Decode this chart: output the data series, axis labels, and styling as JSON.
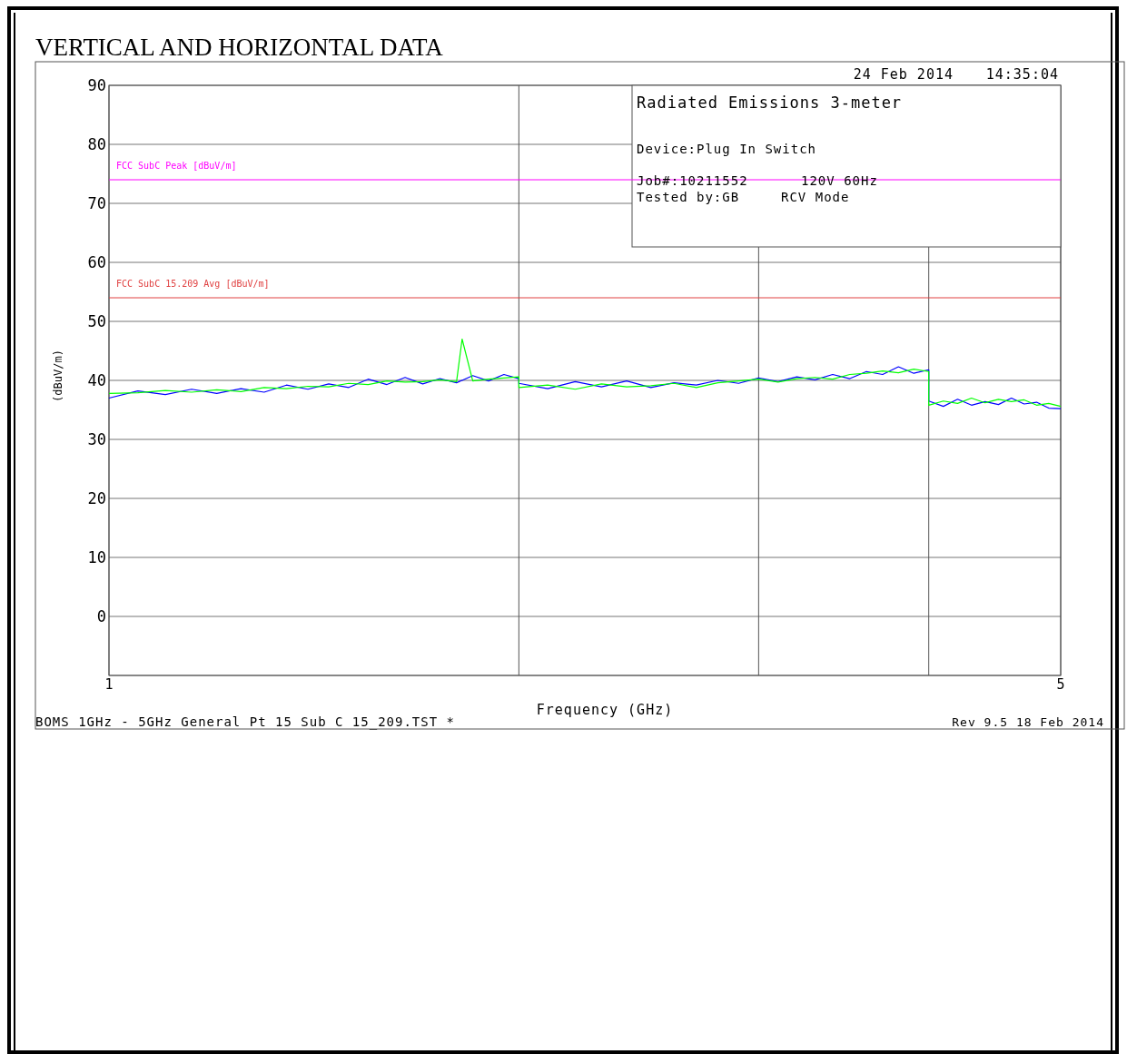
{
  "chart_data": {
    "type": "line",
    "title": "VERTICAL AND HORIZONTAL DATA",
    "xlabel": "Frequency (GHz)",
    "ylabel": "(dBuV/m)",
    "log": "x",
    "grid": true,
    "marker": "none",
    "line_style": "solid",
    "xlim": [
      1,
      5
    ],
    "xticks": [
      1,
      {
        "value": 2,
        "label": null
      },
      {
        "value": 3,
        "label": null
      },
      {
        "value": 4,
        "label": null
      },
      5
    ],
    "ylim": [
      -10,
      90
    ],
    "yticks": [
      {
        "value": -10,
        "label": null
      },
      0,
      10,
      20,
      30,
      40,
      50,
      60,
      70,
      80,
      90
    ],
    "ref_lines": [
      {
        "axis": "y",
        "value": 74,
        "label": "FCC SubC Peak [dBuV/m]",
        "color": "#ff00ff"
      },
      {
        "axis": "y",
        "value": 54,
        "label": "FCC SubC 15.209 Avg [dBuV/m]",
        "color": "#e04040"
      }
    ],
    "annotations": [
      "24 Feb 2014",
      "14:35:04",
      "Radiated Emissions 3-meter",
      "Device:Plug In Switch",
      "Job#:10211552",
      "120V 60Hz",
      "Tested by:GB",
      "RCV Mode",
      "BOMS 1GHz - 5GHz General Pt 15 Sub C 15_209.TST *",
      "Rev 9.5 18 Feb 2014"
    ],
    "series": [
      {
        "color": "#0000ff",
        "x": [
          1,
          1.05,
          1.1,
          1.15,
          1.2,
          1.25,
          1.3,
          1.35,
          1.4,
          1.45,
          1.5,
          1.55,
          1.6,
          1.65,
          1.7,
          1.75,
          1.8,
          1.85,
          1.9,
          1.95,
          2,
          2,
          2.1,
          2.2,
          2.3,
          2.4,
          2.5,
          2.6,
          2.7,
          2.8,
          2.9,
          3,
          3.1,
          3.2,
          3.3,
          3.4,
          3.5,
          3.6,
          3.7,
          3.8,
          3.9,
          4,
          4,
          4.1,
          4.2,
          4.3,
          4.4,
          4.5,
          4.6,
          4.7,
          4.8,
          4.9,
          5
        ],
        "values": [
          37,
          38.2,
          37.6,
          38.5,
          37.8,
          38.6,
          38,
          39.2,
          38.5,
          39.4,
          38.8,
          40.2,
          39.3,
          40.5,
          39.4,
          40.3,
          39.6,
          40.8,
          39.9,
          41,
          40.3,
          39.5,
          38.6,
          39.8,
          38.9,
          39.9,
          38.8,
          39.6,
          39.2,
          40,
          39.5,
          40.4,
          39.8,
          40.6,
          40.1,
          41,
          40.3,
          41.5,
          41,
          42.3,
          41.2,
          41.8,
          36.5,
          35.6,
          36.8,
          35.8,
          36.4,
          35.9,
          37,
          36,
          36.3,
          35.3,
          35.2
        ]
      },
      {
        "color": "#00ff00",
        "x": [
          1,
          1.05,
          1.1,
          1.15,
          1.2,
          1.25,
          1.3,
          1.35,
          1.4,
          1.45,
          1.5,
          1.55,
          1.6,
          1.65,
          1.7,
          1.75,
          1.8,
          1.817,
          1.85,
          1.9,
          1.95,
          2,
          2,
          2.1,
          2.2,
          2.3,
          2.4,
          2.5,
          2.6,
          2.7,
          2.8,
          2.9,
          3,
          3.1,
          3.2,
          3.3,
          3.4,
          3.5,
          3.6,
          3.7,
          3.8,
          3.9,
          4,
          4,
          4.1,
          4.2,
          4.3,
          4.4,
          4.5,
          4.6,
          4.7,
          4.8,
          4.9,
          5
        ],
        "values": [
          37.8,
          37.9,
          38.3,
          38,
          38.4,
          38.1,
          38.8,
          38.6,
          39,
          38.9,
          39.5,
          39.3,
          39.9,
          39.7,
          39.8,
          40.1,
          39.8,
          47,
          39.9,
          40.2,
          40.4,
          40.6,
          38.8,
          39.2,
          38.5,
          39.4,
          38.9,
          39.1,
          39.5,
          38.8,
          39.6,
          39.9,
          40.2,
          39.7,
          40.3,
          40.5,
          40.2,
          41,
          41.2,
          41.6,
          41.3,
          41.9,
          41.5,
          35.8,
          36.5,
          36.1,
          37,
          36.2,
          36.8,
          36.4,
          36.7,
          35.8,
          36.1,
          35.6
        ]
      }
    ]
  }
}
